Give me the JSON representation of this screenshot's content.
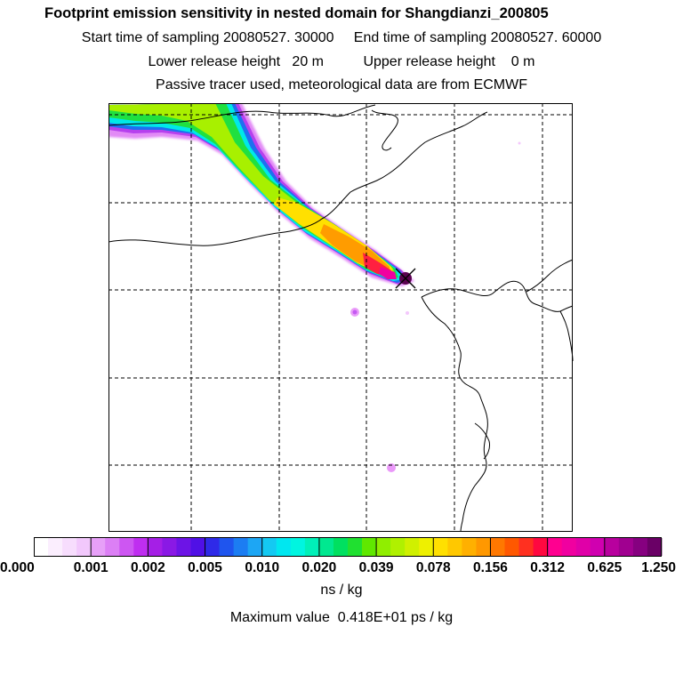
{
  "chart_data": {
    "type": "heatmap",
    "title": "Footprint emission sensitivity in nested domain for Shangdianzi_200805",
    "sampling": {
      "start_label": "Start time of sampling",
      "start_value": "20080527. 30000",
      "end_label": "End time of sampling",
      "end_value": "20080527. 60000"
    },
    "release": {
      "lower_label": "Lower release height",
      "lower_value": "20 m",
      "upper_label": "Upper release height",
      "upper_value": "0 m"
    },
    "note": "Passive tracer used, meteorological data are from ECMWF",
    "colorbar": {
      "tick_labels": [
        "0.000",
        "0.001",
        "0.002",
        "0.005",
        "0.010",
        "0.020",
        "0.039",
        "0.078",
        "0.156",
        "0.312",
        "0.625",
        "1.250"
      ],
      "colors": [
        [
          "#ffffff",
          "#fbeefe",
          "#f7ddfd",
          "#f2c8fc"
        ],
        [
          "#e7a0f8",
          "#dc7ff5",
          "#cd56f2",
          "#bf2ef0"
        ],
        [
          "#a51fe6",
          "#8a19e5",
          "#6d14e6",
          "#5010e6"
        ],
        [
          "#2f2ae8",
          "#1f55ee",
          "#1c7df2",
          "#1da6f4"
        ],
        [
          "#14c9f2",
          "#00e7f0",
          "#00f5e0",
          "#00f0b8"
        ],
        [
          "#00e890",
          "#00e060",
          "#20e030",
          "#60e800"
        ],
        [
          "#90ee00",
          "#b0f000",
          "#d0f000",
          "#eef000"
        ],
        [
          "#ffe000",
          "#ffc800",
          "#ffb000",
          "#ff9800"
        ],
        [
          "#ff7800",
          "#ff5800",
          "#ff3020",
          "#ff0840"
        ],
        [
          "#ff0090",
          "#f000a0",
          "#e000a8",
          "#d000b0"
        ],
        [
          "#b8009e",
          "#a00090",
          "#860080",
          "#6a0066"
        ]
      ],
      "unit": "ns / kg"
    },
    "max_value": {
      "label": "Maximum value",
      "value": "0.418E+01",
      "unit": "ps / kg"
    }
  }
}
